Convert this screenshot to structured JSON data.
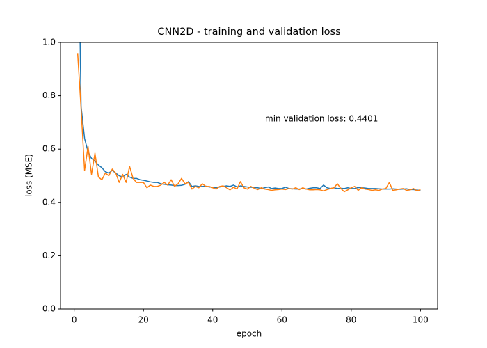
{
  "chart_data": {
    "type": "line",
    "title": "CNN2D - training and validation loss",
    "x_label": "epoch",
    "y_label": "loss (MSE)",
    "annotation": "min validation loss: 0.4401",
    "x": [
      1,
      2,
      3,
      4,
      5,
      6,
      7,
      8,
      9,
      10,
      11,
      12,
      13,
      14,
      15,
      16,
      17,
      18,
      19,
      20,
      21,
      22,
      23,
      24,
      25,
      26,
      27,
      28,
      29,
      30,
      31,
      32,
      33,
      34,
      35,
      36,
      37,
      38,
      39,
      40,
      41,
      42,
      43,
      44,
      45,
      46,
      47,
      48,
      49,
      50,
      51,
      52,
      53,
      54,
      55,
      56,
      57,
      58,
      59,
      60,
      61,
      62,
      63,
      64,
      65,
      66,
      67,
      68,
      69,
      70,
      71,
      72,
      73,
      74,
      75,
      76,
      77,
      78,
      79,
      80,
      81,
      82,
      83,
      84,
      85,
      86,
      87,
      88,
      89,
      90,
      91,
      92,
      93,
      94,
      95,
      96,
      97,
      98,
      99,
      100
    ],
    "series": [
      {
        "color": "#1f77b4",
        "values": [
          1.6,
          0.76,
          0.64,
          0.59,
          0.565,
          0.555,
          0.54,
          0.53,
          0.515,
          0.51,
          0.52,
          0.51,
          0.5,
          0.495,
          0.505,
          0.495,
          0.49,
          0.49,
          0.485,
          0.483,
          0.48,
          0.477,
          0.475,
          0.475,
          0.47,
          0.468,
          0.466,
          0.465,
          0.463,
          0.463,
          0.464,
          0.468,
          0.478,
          0.46,
          0.462,
          0.46,
          0.46,
          0.461,
          0.458,
          0.457,
          0.455,
          0.458,
          0.46,
          0.462,
          0.46,
          0.465,
          0.458,
          0.462,
          0.46,
          0.458,
          0.457,
          0.456,
          0.455,
          0.452,
          0.455,
          0.458,
          0.452,
          0.454,
          0.452,
          0.452,
          0.457,
          0.452,
          0.451,
          0.45,
          0.45,
          0.452,
          0.45,
          0.453,
          0.455,
          0.455,
          0.452,
          0.465,
          0.455,
          0.452,
          0.455,
          0.452,
          0.453,
          0.452,
          0.455,
          0.452,
          0.452,
          0.456,
          0.455,
          0.454,
          0.452,
          0.452,
          0.452,
          0.451,
          0.45,
          0.45,
          0.45,
          0.451,
          0.45,
          0.449,
          0.45,
          0.451,
          0.448,
          0.448,
          0.446,
          0.445
        ]
      },
      {
        "color": "#ff7f0e",
        "values": [
          0.96,
          0.75,
          0.52,
          0.61,
          0.505,
          0.585,
          0.495,
          0.485,
          0.51,
          0.5,
          0.525,
          0.51,
          0.475,
          0.505,
          0.475,
          0.535,
          0.49,
          0.475,
          0.475,
          0.475,
          0.455,
          0.465,
          0.46,
          0.46,
          0.465,
          0.475,
          0.465,
          0.485,
          0.46,
          0.47,
          0.49,
          0.47,
          0.475,
          0.45,
          0.46,
          0.455,
          0.47,
          0.46,
          0.46,
          0.455,
          0.45,
          0.46,
          0.462,
          0.455,
          0.447,
          0.457,
          0.45,
          0.478,
          0.455,
          0.45,
          0.46,
          0.453,
          0.448,
          0.455,
          0.45,
          0.448,
          0.445,
          0.447,
          0.448,
          0.45,
          0.448,
          0.452,
          0.45,
          0.455,
          0.448,
          0.455,
          0.45,
          0.447,
          0.447,
          0.448,
          0.447,
          0.443,
          0.448,
          0.452,
          0.455,
          0.47,
          0.452,
          0.4401,
          0.447,
          0.455,
          0.46,
          0.445,
          0.455,
          0.45,
          0.448,
          0.445,
          0.447,
          0.445,
          0.45,
          0.452,
          0.475,
          0.445,
          0.447,
          0.45,
          0.452,
          0.445,
          0.447,
          0.452,
          0.443,
          0.448
        ]
      }
    ],
    "xlim": [
      -3.95,
      104.95
    ],
    "xticks": [
      0,
      20,
      40,
      60,
      80,
      100
    ],
    "ylim": [
      0,
      1
    ],
    "yticks": [
      {
        "value": 0,
        "label": "0.0"
      },
      0.2,
      0.4,
      0.6,
      0.8,
      {
        "value": 1,
        "label": "1.0"
      }
    ],
    "grid": false
  }
}
